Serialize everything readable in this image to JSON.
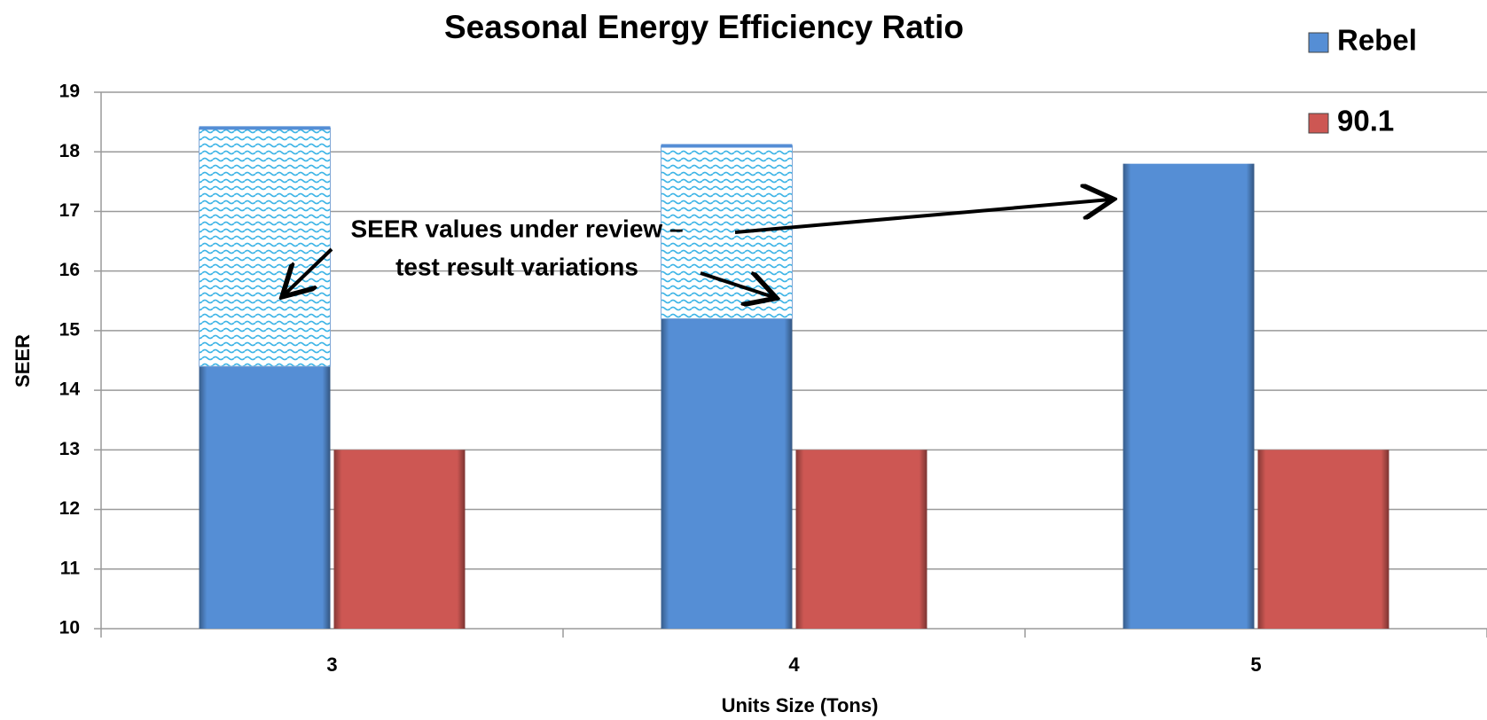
{
  "chart_data": {
    "type": "bar",
    "title": "Seasonal Energy Efficiency Ratio",
    "x_label": "Units Size (Tons)",
    "y_label": "SEER",
    "categories": [
      "3",
      "4",
      "5"
    ],
    "series": [
      {
        "name": "Rebel",
        "color": "#558ed5",
        "values": [
          14.4,
          15.2,
          17.8
        ]
      },
      {
        "name": "90.1",
        "color": "#cd5753",
        "values": [
          13,
          13,
          13
        ]
      }
    ],
    "review": {
      "color": "#3cb4e6",
      "values": [
        4,
        2.9,
        null
      ]
    },
    "annotation": [
      "SEER values under review –",
      "test result variations"
    ],
    "ylim": [
      10,
      19
    ],
    "yticks": [
      10,
      11,
      12,
      13,
      14,
      15,
      16,
      17,
      18,
      19
    ],
    "grid": true,
    "legend": "top-right"
  }
}
